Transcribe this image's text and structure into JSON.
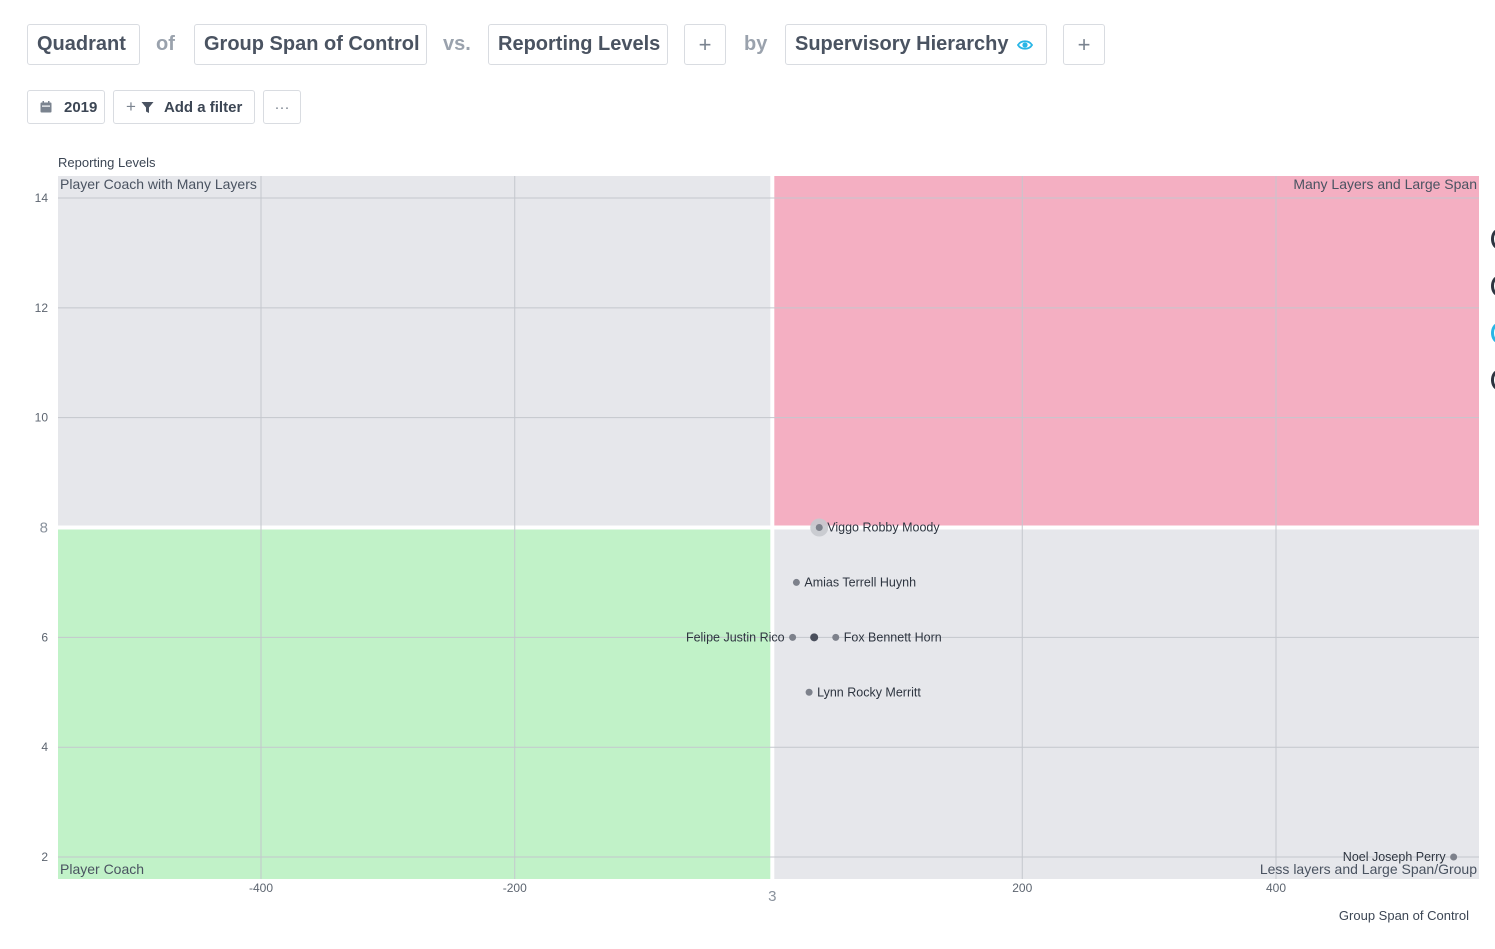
{
  "query": {
    "measure": "Quadrant",
    "of_word": "of",
    "x_metric": "Group Span of Control",
    "vs_word": "vs.",
    "y_metric": "Reporting Levels",
    "add_label": "+",
    "by_word": "by",
    "group_by": "Supervisory Hierarchy",
    "accent_color": "#29b6e6"
  },
  "filters": {
    "year": "2019",
    "add_filter_label": "Add a filter",
    "more_label": "···"
  },
  "chart_data": {
    "type": "scatter",
    "xlabel": "Group Span of Control",
    "ylabel": "Reporting Levels",
    "xlim": [
      -560,
      560
    ],
    "ylim": [
      1.6,
      14.4
    ],
    "x_ticks": [
      -400,
      -200,
      200,
      400
    ],
    "y_ticks": [
      2,
      4,
      6,
      10,
      12,
      14
    ],
    "grid": true,
    "threshold": {
      "x": 3,
      "y": 8,
      "x_label": "3",
      "y_label": "8"
    },
    "quadrants": [
      {
        "id": "top-left",
        "label": "Player Coach with Many Layers",
        "color": "#e6e7eb"
      },
      {
        "id": "top-right",
        "label": "Many Layers and Large Span",
        "color": "#f4afc2"
      },
      {
        "id": "bottom-left",
        "label": "Player Coach",
        "color": "#c1f2c8"
      },
      {
        "id": "bottom-right",
        "label": "Less layers and Large Span/Group",
        "color": "#e6e7eb"
      }
    ],
    "points": [
      {
        "name": "Viggo Robby Moody",
        "x": 40,
        "y": 8,
        "highlight": true,
        "label_side": "right"
      },
      {
        "name": "Amias Terrell Huynh",
        "x": 22,
        "y": 7,
        "label_side": "right"
      },
      {
        "name": "Felipe Justin Rico",
        "x": 19,
        "y": 6,
        "label_side": "left"
      },
      {
        "name": "",
        "x": 36,
        "y": 6,
        "label_side": "none",
        "dark": true
      },
      {
        "name": "Fox Bennett Horn",
        "x": 53,
        "y": 6,
        "label_side": "right"
      },
      {
        "name": "Lynn Rocky Merritt",
        "x": 32,
        "y": 5,
        "label_side": "right"
      },
      {
        "name": "Noel Joseph Perry",
        "x": 540,
        "y": 2,
        "label_side": "left"
      }
    ]
  }
}
